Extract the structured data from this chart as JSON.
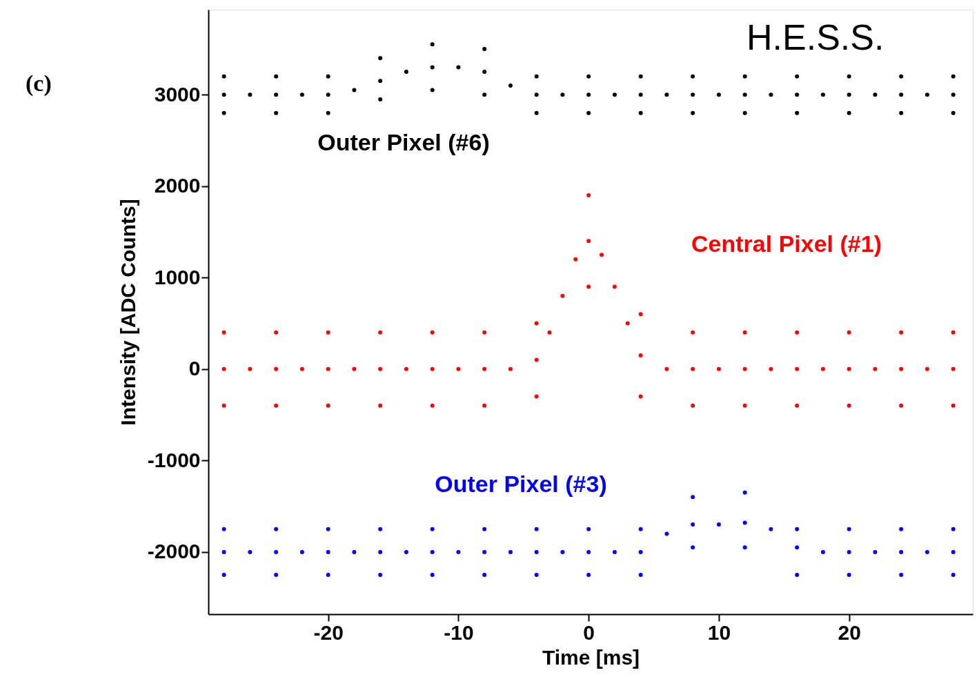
{
  "chart_data": {
    "type": "scatter",
    "xlabel": "Time [ms]",
    "ylabel": "Intensity [ADC Counts]",
    "annotations": [
      "(c)",
      "H.E.S.S."
    ],
    "xlim": [
      -29.2,
      29.5
    ],
    "ylim": [
      -2680,
      3930
    ],
    "xticks": [
      -20,
      -10,
      0,
      10,
      20
    ],
    "yticks": [
      -2000,
      -1000,
      0,
      1000,
      2000,
      3000
    ],
    "grid": false,
    "series": [
      {
        "name": "Outer Pixel (#6)",
        "color": "#000000",
        "x": [
          -28,
          -26,
          -24,
          -22,
          -20,
          -18,
          -16,
          -14,
          -12,
          -10,
          -8,
          -6,
          -4,
          -2,
          0,
          2,
          4,
          6,
          8,
          10,
          12,
          14,
          16,
          18,
          20,
          22,
          24,
          26,
          28,
          -28,
          -24,
          -20,
          -16,
          -12,
          -8,
          -4,
          0,
          4,
          8,
          12,
          16,
          20,
          24,
          28,
          -28,
          -24,
          -20,
          -16,
          -12,
          -8,
          -4,
          0,
          4,
          8,
          12,
          16,
          20,
          24,
          28
        ],
        "values": [
          3000,
          3000,
          3000,
          3000,
          3000,
          3050,
          3150,
          3250,
          3300,
          3300,
          3250,
          3100,
          3000,
          3000,
          3000,
          3000,
          3000,
          3000,
          3000,
          3000,
          3000,
          3000,
          3000,
          3000,
          3000,
          3000,
          3000,
          3000,
          3000,
          3200,
          3200,
          3200,
          3400,
          3550,
          3500,
          3200,
          3200,
          3200,
          3200,
          3200,
          3200,
          3200,
          3200,
          3200,
          2800,
          2800,
          2800,
          2950,
          3050,
          3000,
          2800,
          2800,
          2800,
          2800,
          2800,
          2800,
          2800,
          2800,
          2800
        ]
      },
      {
        "name": "Central Pixel (#1)",
        "color": "#ff0000",
        "x": [
          -28,
          -26,
          -24,
          -22,
          -20,
          -18,
          -16,
          -14,
          -12,
          -10,
          -8,
          -6,
          -4,
          -3,
          -2,
          -1,
          0,
          1,
          2,
          3,
          4,
          6,
          8,
          10,
          12,
          14,
          16,
          18,
          20,
          22,
          24,
          26,
          28,
          -28,
          -24,
          -20,
          -16,
          -12,
          -8,
          -4,
          0,
          4,
          8,
          12,
          16,
          20,
          24,
          28,
          -28,
          -24,
          -20,
          -16,
          -12,
          -8,
          -4,
          0,
          4,
          8,
          12,
          16,
          20,
          24,
          28
        ],
        "values": [
          0,
          0,
          0,
          0,
          0,
          0,
          0,
          0,
          0,
          0,
          0,
          0,
          100,
          400,
          800,
          1200,
          1400,
          1250,
          900,
          500,
          150,
          0,
          0,
          0,
          0,
          0,
          0,
          0,
          0,
          0,
          0,
          0,
          0,
          400,
          400,
          400,
          400,
          400,
          400,
          500,
          1900,
          600,
          400,
          400,
          400,
          400,
          400,
          400,
          -400,
          -400,
          -400,
          -400,
          -400,
          -400,
          -300,
          900,
          -300,
          -400,
          -400,
          -400,
          -400,
          -400,
          -400
        ]
      },
      {
        "name": "Outer Pixel (#3)",
        "color": "#0000ff",
        "x": [
          -28,
          -26,
          -24,
          -22,
          -20,
          -18,
          -16,
          -14,
          -12,
          -10,
          -8,
          -6,
          -4,
          -2,
          0,
          2,
          4,
          6,
          8,
          10,
          12,
          14,
          16,
          18,
          20,
          22,
          24,
          26,
          28,
          -28,
          -24,
          -20,
          -16,
          -12,
          -8,
          -4,
          0,
          4,
          8,
          12,
          16,
          20,
          24,
          28,
          -28,
          -24,
          -20,
          -16,
          -12,
          -8,
          -4,
          0,
          4,
          8,
          12,
          16,
          20,
          24,
          28
        ],
        "values": [
          -2000,
          -2000,
          -2000,
          -2000,
          -2000,
          -2000,
          -2000,
          -2000,
          -2000,
          -2000,
          -2000,
          -2000,
          -2000,
          -2000,
          -2000,
          -2000,
          -2000,
          -1800,
          -1700,
          -1700,
          -1680,
          -1750,
          -1950,
          -2000,
          -2000,
          -2000,
          -2000,
          -2000,
          -2000,
          -1750,
          -1750,
          -1750,
          -1750,
          -1750,
          -1750,
          -1750,
          -1750,
          -1750,
          -1400,
          -1350,
          -1750,
          -1750,
          -1750,
          -1750,
          -2250,
          -2250,
          -2250,
          -2250,
          -2250,
          -2250,
          -2250,
          -2250,
          -2250,
          -1950,
          -1950,
          -2250,
          -2250,
          -2250,
          -2250
        ]
      }
    ]
  }
}
